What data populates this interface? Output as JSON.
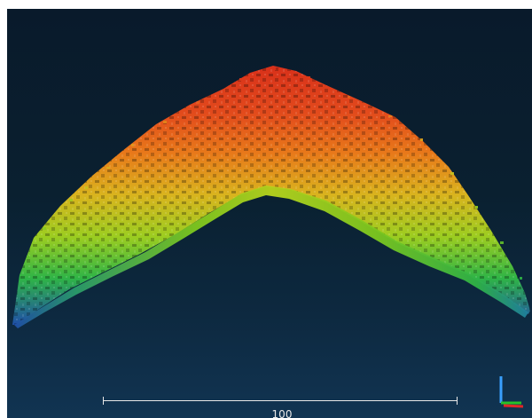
{
  "viewer": {
    "background_top": "#091a2b",
    "background_bottom": "#113452",
    "color_scale": [
      "#1f4fa8",
      "#1fb04a",
      "#7ec81e",
      "#e0c21e",
      "#e87a1a",
      "#d8301a"
    ]
  },
  "scale_bar": {
    "label": "100"
  },
  "axis_gizmo": {
    "icon": "xyz-axis-icon",
    "colors": {
      "x": "#e02828",
      "y": "#28c028",
      "z": "#3aa0ff"
    }
  }
}
